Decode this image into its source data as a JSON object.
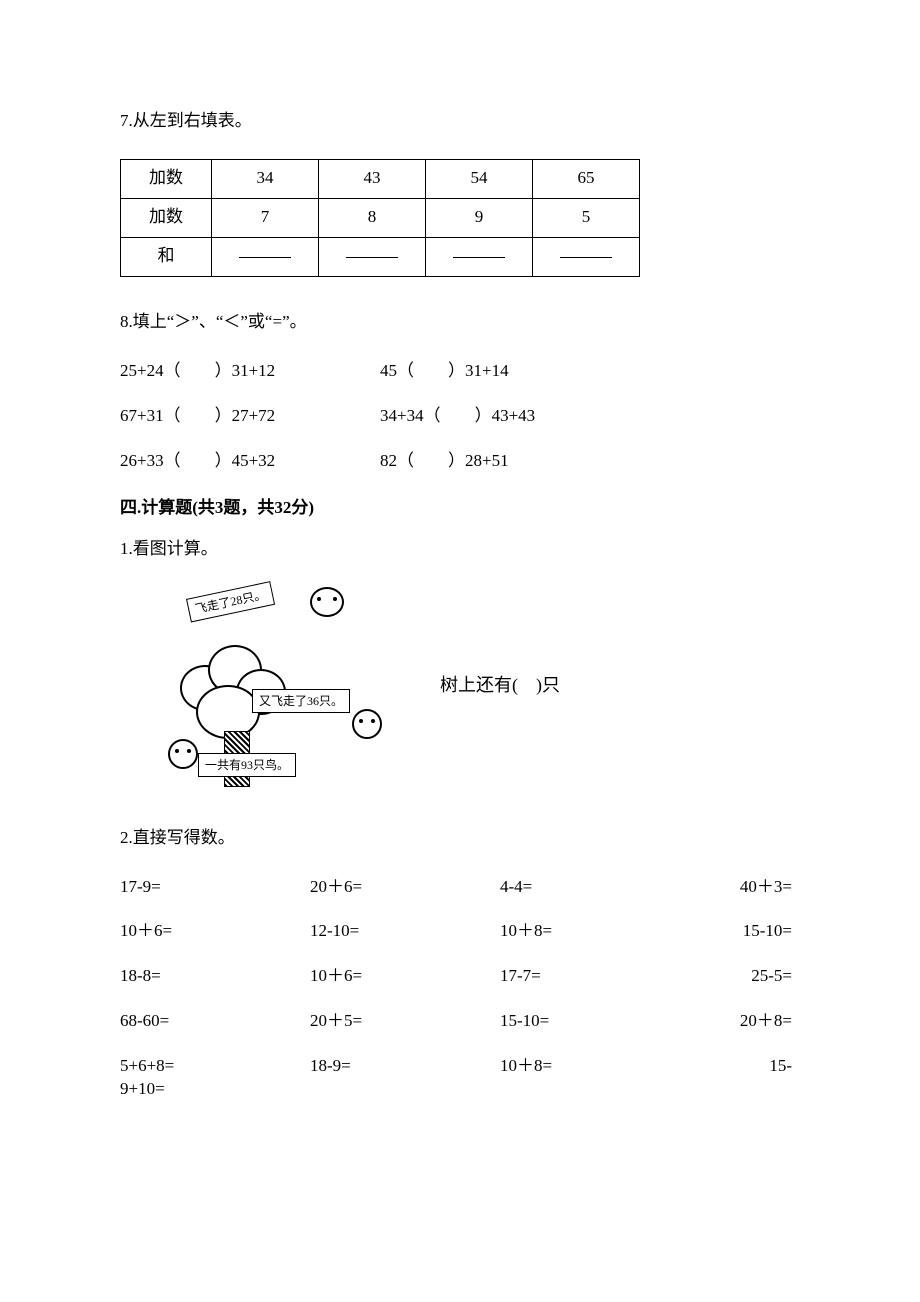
{
  "q7": {
    "prompt": "7.从左到右填表。",
    "row_labels": [
      "加数",
      "加数",
      "和"
    ],
    "cols": [
      {
        "a": "34",
        "b": "7"
      },
      {
        "a": "43",
        "b": "8"
      },
      {
        "a": "54",
        "b": "9"
      },
      {
        "a": "65",
        "b": "5"
      }
    ]
  },
  "q8": {
    "prompt": "8.填上“＞”、“＜”或“=”。",
    "rows": [
      {
        "l": "25+24（　　）31+12",
        "r": "45（　　）31+14"
      },
      {
        "l": "67+31（　　）27+72",
        "r": "34+34（　　）43+43"
      },
      {
        "l": "26+33（　　）45+32",
        "r": "82（　　）28+51"
      }
    ]
  },
  "section4": {
    "heading": "四.计算题(共3题，共32分)"
  },
  "q4_1": {
    "prompt": "1.看图计算。",
    "bubble_fly1": "飞走了28只。",
    "bubble_fly2": "又飞走了36只。",
    "bubble_total": "一共有93只鸟。",
    "right_text": "树上还有(　)只"
  },
  "q4_2": {
    "prompt": "2.直接写得数。",
    "grid": [
      [
        "17-9=",
        "20＋6=",
        "4-4=",
        "40＋3="
      ],
      [
        "10＋6=",
        "12-10=",
        "10＋8=",
        "15-10="
      ],
      [
        "18-8=",
        "10＋6=",
        "17-7=",
        "25-5="
      ],
      [
        "68-60=",
        "20＋5=",
        "15-10=",
        "20＋8="
      ],
      [
        "5+6+8=\n9+10=",
        "18-9=",
        "10＋8=",
        "15-"
      ]
    ]
  }
}
